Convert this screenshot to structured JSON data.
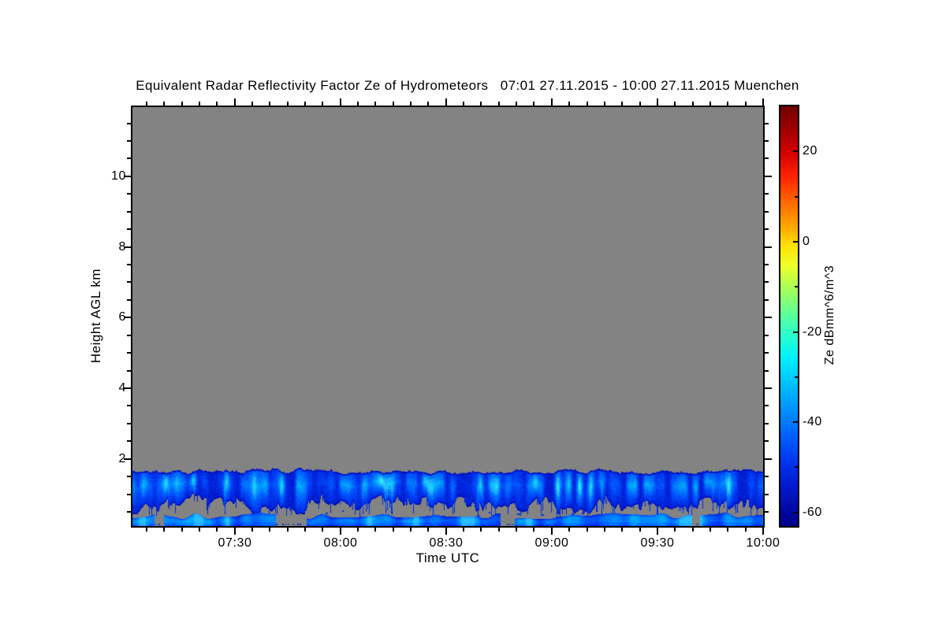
{
  "title": "Equivalent Radar Reflectivity Factor Ze of Hydrometeors   07:01 27.11.2015 - 10:00 27.11.2015 Muenchen",
  "chart_data": {
    "type": "heatmap",
    "title": "Equivalent Radar Reflectivity Factor Ze of Hydrometeors",
    "period": "07:01 27.11.2015 - 10:00 27.11.2015",
    "site": "Muenchen",
    "xlabel": "Time UTC",
    "ylabel": "Height AGL km",
    "x_axis": {
      "start_time": "07:01",
      "end_time": "10:00",
      "major_tick_labels": [
        "07:30",
        "08:00",
        "08:30",
        "09:00",
        "09:30",
        "10:00"
      ],
      "minor_step_minutes": 5
    },
    "y_axis": {
      "min_km": 0.1,
      "max_km": 11.96,
      "major_ticks": [
        2,
        4,
        6,
        8,
        10
      ],
      "minor_step_km": 0.5
    },
    "colorbar": {
      "label": "Ze dBmm^6/m^3",
      "tick_values": [
        20,
        0,
        -20,
        -40,
        -60
      ],
      "minor_step": 10,
      "value_range": [
        30,
        -63
      ],
      "gradient": [
        [
          0.0,
          "#700000"
        ],
        [
          0.05,
          "#9a0000"
        ],
        [
          0.11,
          "#d40000"
        ],
        [
          0.17,
          "#ff2400"
        ],
        [
          0.23,
          "#ff6a00"
        ],
        [
          0.29,
          "#ffaa00"
        ],
        [
          0.33,
          "#ffe000"
        ],
        [
          0.38,
          "#eeff2a"
        ],
        [
          0.44,
          "#9fff5d"
        ],
        [
          0.5,
          "#58ff9e"
        ],
        [
          0.55,
          "#24ffd2"
        ],
        [
          0.6,
          "#00f0ff"
        ],
        [
          0.66,
          "#00c2ff"
        ],
        [
          0.72,
          "#0094ff"
        ],
        [
          0.78,
          "#0063ff"
        ],
        [
          0.84,
          "#0039f2"
        ],
        [
          0.9,
          "#001cd2"
        ],
        [
          0.96,
          "#0009a6"
        ],
        [
          1.0,
          "#000088"
        ]
      ]
    },
    "no_data_color": "#838383",
    "layers": [
      {
        "name": "cloud-band",
        "description": "continuous stratiform cloud layer, jagged base",
        "top_km_range": [
          1.55,
          1.75
        ],
        "base_km_range": [
          0.45,
          1.06
        ],
        "ze_dbz_range": [
          -58,
          -26
        ]
      },
      {
        "name": "near-surface-layer",
        "description": "thin broken echo layer near the ground",
        "top_km_range": [
          0.3,
          0.48
        ],
        "base_km": 0.13,
        "ze_dbz_range": [
          -52,
          -34
        ]
      }
    ],
    "seed": 20151127
  }
}
